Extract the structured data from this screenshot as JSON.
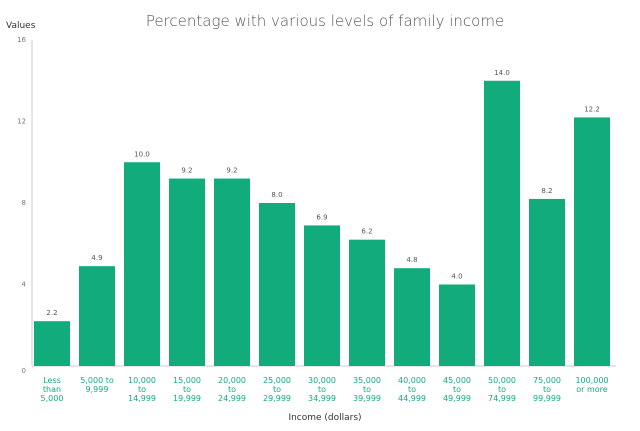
{
  "chart_data": {
    "type": "bar",
    "title": "Percentage with various levels of family income",
    "ylabel": "Values",
    "xlabel": "Income (dollars)",
    "ylim": [
      0,
      16
    ],
    "yticks": [
      0,
      4,
      8,
      12,
      16
    ],
    "grid": false,
    "categories": [
      [
        "Less",
        "than",
        "5,000"
      ],
      [
        "5,000 to",
        "9,999"
      ],
      [
        "10,000",
        "to",
        "14,999"
      ],
      [
        "15,000",
        "to",
        "19,999"
      ],
      [
        "20,000",
        "to",
        "24,999"
      ],
      [
        "25,000",
        "to",
        "29,999"
      ],
      [
        "30,000",
        "to",
        "34,999"
      ],
      [
        "35,000",
        "to",
        "39,999"
      ],
      [
        "40,000",
        "to",
        "44,999"
      ],
      [
        "45,000",
        "to",
        "49,999"
      ],
      [
        "50,000",
        "to",
        "74,999"
      ],
      [
        "75,000",
        "to",
        "99,999"
      ],
      [
        "100,000",
        "or more"
      ]
    ],
    "values": [
      2.2,
      4.9,
      10.0,
      9.2,
      9.2,
      8.0,
      6.9,
      6.2,
      4.8,
      4.0,
      14.0,
      8.2,
      12.2
    ],
    "data_labels": [
      "2.2",
      "4.9",
      "10.0",
      "9.2",
      "9.2",
      "8.0",
      "6.9",
      "6.2",
      "4.8",
      "4.0",
      "14.0",
      "8.2",
      "12.2"
    ],
    "colors": {
      "bar": "#12ab7c",
      "tick_label": "#12ab7c"
    }
  }
}
